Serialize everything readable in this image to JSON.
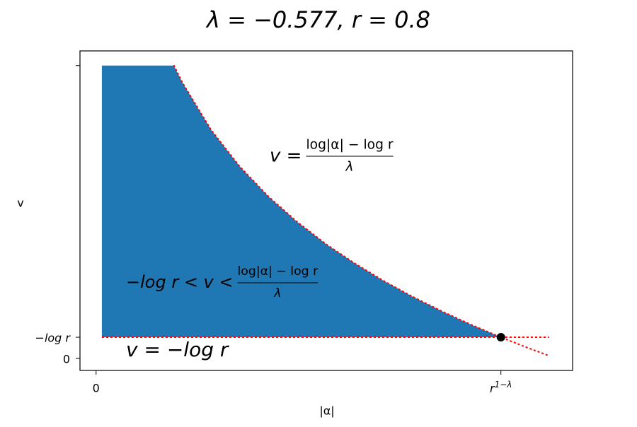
{
  "chart_data": {
    "type": "region",
    "title": "λ = −0.577, r = 0.8",
    "x_label": "|α|",
    "y_label": "v",
    "xlim": [
      -0.028,
      0.828
    ],
    "ylim": [
      -0.126,
      3.234
    ],
    "xticks": [
      0,
      {
        "value": 0.7034,
        "label": "r",
        "superscript": "1−λ"
      }
    ],
    "yticks": [
      0,
      {
        "value": 0.223,
        "label": "−log r"
      },
      {
        "value": 3.08,
        "label": null
      }
    ],
    "fill": {
      "color": "#1f77b4",
      "x": [
        0.01,
        0.135,
        0.15,
        0.2,
        0.25,
        0.3,
        0.35,
        0.4,
        0.45,
        0.5,
        0.55,
        0.6,
        0.65,
        0.7034
      ],
      "upper": [
        3.08,
        3.08,
        2.901,
        2.402,
        2.016,
        1.7,
        1.433,
        1.201,
        0.998,
        0.815,
        0.65,
        0.499,
        0.36,
        0.223
      ],
      "lower": 0.223
    },
    "curve": {
      "color": "#ff0000",
      "x": [
        0.135,
        0.15,
        0.2,
        0.25,
        0.3,
        0.35,
        0.4,
        0.45,
        0.5,
        0.55,
        0.6,
        0.65,
        0.7034,
        0.75,
        0.787
      ],
      "values": [
        3.084,
        2.901,
        2.402,
        2.016,
        1.7,
        1.433,
        1.201,
        0.998,
        0.815,
        0.65,
        0.499,
        0.36,
        0.223,
        0.112,
        0.029
      ]
    },
    "floor_line": {
      "color": "#ff0000",
      "x": [
        0.01,
        0.787
      ],
      "values": [
        0.223,
        0.223
      ]
    },
    "point": {
      "color": "#000000",
      "x": 0.7034,
      "y": 0.223
    },
    "annotations": {
      "curve_label": {
        "lhs": "v =",
        "numerator": "log|α| − log r",
        "denominator": "λ"
      },
      "region_label": {
        "lhs": "−log r < v <",
        "numerator": "log|α| − log r",
        "denominator": "λ"
      },
      "floor_label": "v = −log r"
    }
  }
}
